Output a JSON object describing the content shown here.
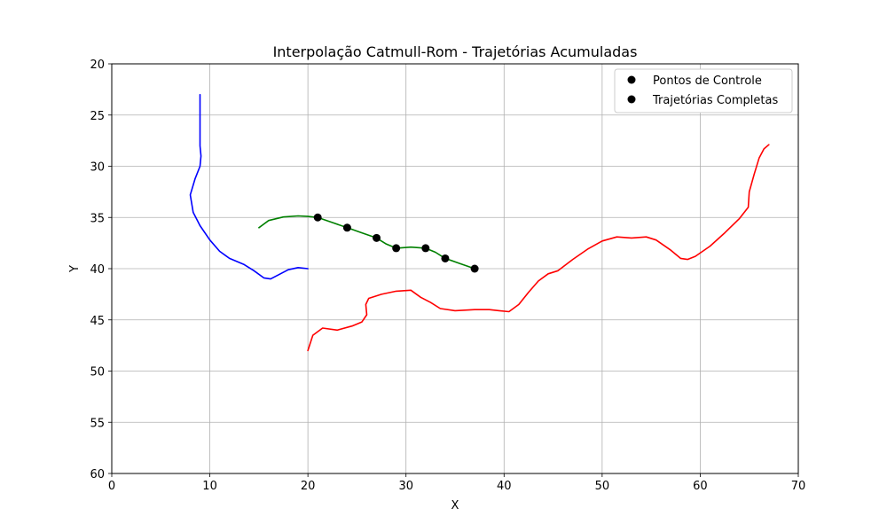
{
  "chart_data": {
    "type": "line",
    "title": "Interpolação Catmull-Rom - Trajetórias Acumuladas",
    "xlabel": "X",
    "ylabel": "Y",
    "xlim": [
      0,
      70
    ],
    "ylim": [
      20,
      60
    ],
    "y_inverted": true,
    "grid": true,
    "xticks": [
      0,
      10,
      20,
      30,
      40,
      50,
      60,
      70
    ],
    "yticks": [
      20,
      25,
      30,
      35,
      40,
      45,
      50,
      55,
      60
    ],
    "legend": {
      "placement": "top-right",
      "entries": [
        "Pontos de Controle",
        "Trajetórias Completas"
      ]
    },
    "series": [
      {
        "color": "#0000ff",
        "points": [
          [
            9.0,
            23.0
          ],
          [
            9.0,
            28.0
          ],
          [
            9.1,
            29.0
          ],
          [
            9.0,
            30.0
          ],
          [
            8.5,
            31.2
          ],
          [
            8.0,
            32.8
          ],
          [
            8.3,
            34.5
          ],
          [
            9.0,
            35.8
          ],
          [
            10.0,
            37.2
          ],
          [
            11.0,
            38.3
          ],
          [
            12.0,
            39.0
          ],
          [
            13.5,
            39.6
          ],
          [
            14.5,
            40.2
          ],
          [
            15.5,
            40.9
          ],
          [
            16.2,
            41.0
          ],
          [
            17.0,
            40.6
          ],
          [
            18.0,
            40.1
          ],
          [
            19.0,
            39.9
          ],
          [
            20.0,
            40.0
          ]
        ]
      },
      {
        "color": "#ff0000",
        "points": [
          [
            20.0,
            48.0
          ],
          [
            20.5,
            46.5
          ],
          [
            21.5,
            45.8
          ],
          [
            23.0,
            46.0
          ],
          [
            24.5,
            45.6
          ],
          [
            25.5,
            45.2
          ],
          [
            26.0,
            44.5
          ],
          [
            25.9,
            43.5
          ],
          [
            26.2,
            42.9
          ],
          [
            27.5,
            42.5
          ],
          [
            29.0,
            42.2
          ],
          [
            30.5,
            42.1
          ],
          [
            31.5,
            42.8
          ],
          [
            32.5,
            43.3
          ],
          [
            33.5,
            43.9
          ],
          [
            35.0,
            44.1
          ],
          [
            37.0,
            44.0
          ],
          [
            38.5,
            44.0
          ],
          [
            39.5,
            44.1
          ],
          [
            40.5,
            44.2
          ],
          [
            41.5,
            43.5
          ],
          [
            42.5,
            42.3
          ],
          [
            43.5,
            41.2
          ],
          [
            44.5,
            40.5
          ],
          [
            45.5,
            40.2
          ],
          [
            47.0,
            39.1
          ],
          [
            48.5,
            38.1
          ],
          [
            50.0,
            37.3
          ],
          [
            51.5,
            36.9
          ],
          [
            53.0,
            37.0
          ],
          [
            54.5,
            36.9
          ],
          [
            55.5,
            37.2
          ],
          [
            57.0,
            38.2
          ],
          [
            58.0,
            39.0
          ],
          [
            58.7,
            39.1
          ],
          [
            59.5,
            38.8
          ],
          [
            61.0,
            37.8
          ],
          [
            62.5,
            36.5
          ],
          [
            64.0,
            35.1
          ],
          [
            64.9,
            34.0
          ],
          [
            65.0,
            32.5
          ],
          [
            65.5,
            30.8
          ],
          [
            66.0,
            29.2
          ],
          [
            66.5,
            28.3
          ],
          [
            67.0,
            27.9
          ]
        ]
      },
      {
        "color": "#008000",
        "points": [
          [
            15.0,
            36.0
          ],
          [
            16.0,
            35.3
          ],
          [
            17.5,
            34.95
          ],
          [
            19.0,
            34.85
          ],
          [
            20.0,
            34.9
          ],
          [
            21.0,
            35.0
          ],
          [
            22.5,
            35.5
          ],
          [
            24.0,
            36.0
          ],
          [
            25.5,
            36.5
          ],
          [
            27.0,
            37.0
          ],
          [
            28.0,
            37.6
          ],
          [
            29.0,
            38.0
          ],
          [
            30.5,
            37.9
          ],
          [
            32.0,
            38.0
          ],
          [
            33.0,
            38.4
          ],
          [
            34.0,
            39.0
          ],
          [
            35.5,
            39.5
          ],
          [
            37.0,
            40.0
          ]
        ]
      }
    ],
    "control_points": [
      [
        21,
        35
      ],
      [
        24,
        36
      ],
      [
        27,
        37
      ],
      [
        29,
        38
      ],
      [
        32,
        38
      ],
      [
        34,
        39
      ],
      [
        37,
        40
      ]
    ]
  }
}
